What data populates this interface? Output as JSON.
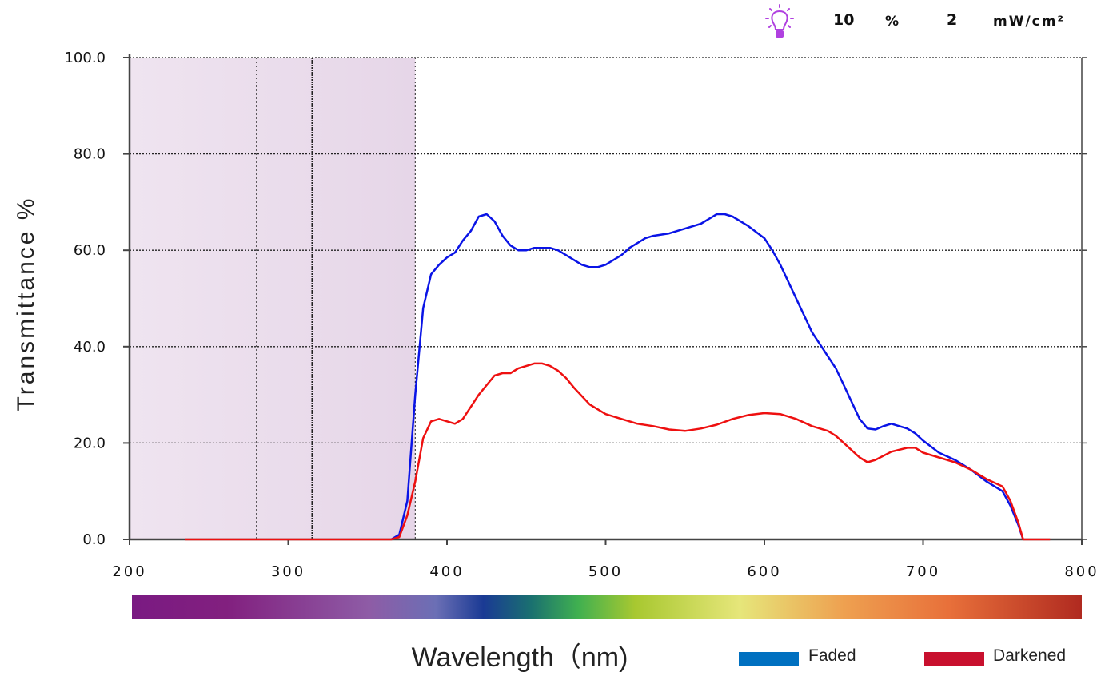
{
  "header": {
    "icon": "lightbulb-icon",
    "icon_color": "#b040e0",
    "intensity_value": "10",
    "intensity_unit": "%",
    "power_value": "2",
    "power_unit": "mW/cm²"
  },
  "chart_data": {
    "type": "line",
    "title": "",
    "xlabel": "Wavelength（nm)",
    "ylabel": "Transmittance %",
    "xlim": [
      200,
      800
    ],
    "ylim": [
      0,
      100
    ],
    "xticks": [
      200,
      300,
      400,
      500,
      600,
      700,
      800
    ],
    "yticks": [
      "0.0",
      "20.0",
      "40.0",
      "60.0",
      "80.0",
      "100.0"
    ],
    "grid": true,
    "uv_shaded_range": [
      200,
      380
    ],
    "reference_lines": [
      280,
      315,
      380
    ],
    "legend_position": "bottom-right",
    "series": [
      {
        "name": "Faded",
        "color": "#0a14e6",
        "legend_color": "#0070c0",
        "points": [
          [
            365,
            0
          ],
          [
            370,
            1
          ],
          [
            375,
            8
          ],
          [
            380,
            30
          ],
          [
            385,
            48
          ],
          [
            390,
            55
          ],
          [
            395,
            57
          ],
          [
            400,
            58.5
          ],
          [
            405,
            59.5
          ],
          [
            410,
            62
          ],
          [
            415,
            64
          ],
          [
            420,
            67
          ],
          [
            425,
            67.5
          ],
          [
            430,
            66
          ],
          [
            435,
            63
          ],
          [
            440,
            61
          ],
          [
            445,
            60
          ],
          [
            450,
            60
          ],
          [
            455,
            60.5
          ],
          [
            460,
            60.5
          ],
          [
            465,
            60.5
          ],
          [
            470,
            60
          ],
          [
            475,
            59
          ],
          [
            480,
            58
          ],
          [
            485,
            57
          ],
          [
            490,
            56.5
          ],
          [
            495,
            56.5
          ],
          [
            500,
            57
          ],
          [
            505,
            58
          ],
          [
            510,
            59
          ],
          [
            515,
            60.5
          ],
          [
            520,
            61.5
          ],
          [
            525,
            62.5
          ],
          [
            530,
            63
          ],
          [
            540,
            63.5
          ],
          [
            550,
            64.5
          ],
          [
            560,
            65.5
          ],
          [
            570,
            67.5
          ],
          [
            575,
            67.5
          ],
          [
            580,
            67
          ],
          [
            590,
            65
          ],
          [
            600,
            62.5
          ],
          [
            605,
            60
          ],
          [
            610,
            57
          ],
          [
            620,
            50
          ],
          [
            630,
            43
          ],
          [
            640,
            38
          ],
          [
            645,
            35.5
          ],
          [
            650,
            32
          ],
          [
            660,
            25
          ],
          [
            665,
            23
          ],
          [
            670,
            22.8
          ],
          [
            675,
            23.5
          ],
          [
            680,
            24
          ],
          [
            685,
            23.5
          ],
          [
            690,
            23
          ],
          [
            695,
            22
          ],
          [
            700,
            20.5
          ],
          [
            710,
            18
          ],
          [
            720,
            16.5
          ],
          [
            730,
            14.5
          ],
          [
            740,
            12
          ],
          [
            750,
            10
          ],
          [
            755,
            7
          ],
          [
            760,
            3
          ],
          [
            763,
            0
          ]
        ]
      },
      {
        "name": "Darkened",
        "color": "#ee1010",
        "legend_color": "#c8102e",
        "points": [
          [
            235,
            0
          ],
          [
            365,
            0
          ],
          [
            370,
            0.5
          ],
          [
            375,
            5
          ],
          [
            380,
            12
          ],
          [
            385,
            21
          ],
          [
            390,
            24.5
          ],
          [
            395,
            25
          ],
          [
            400,
            24.5
          ],
          [
            405,
            24
          ],
          [
            410,
            25
          ],
          [
            415,
            27.5
          ],
          [
            420,
            30
          ],
          [
            425,
            32
          ],
          [
            430,
            34
          ],
          [
            435,
            34.5
          ],
          [
            440,
            34.5
          ],
          [
            445,
            35.5
          ],
          [
            450,
            36
          ],
          [
            455,
            36.5
          ],
          [
            460,
            36.5
          ],
          [
            465,
            36
          ],
          [
            470,
            35
          ],
          [
            475,
            33.5
          ],
          [
            480,
            31.5
          ],
          [
            490,
            28
          ],
          [
            500,
            26
          ],
          [
            510,
            25
          ],
          [
            520,
            24
          ],
          [
            530,
            23.5
          ],
          [
            540,
            22.8
          ],
          [
            550,
            22.5
          ],
          [
            560,
            23
          ],
          [
            570,
            23.8
          ],
          [
            580,
            25
          ],
          [
            590,
            25.8
          ],
          [
            600,
            26.2
          ],
          [
            610,
            26
          ],
          [
            620,
            25
          ],
          [
            630,
            23.5
          ],
          [
            640,
            22.5
          ],
          [
            645,
            21.5
          ],
          [
            650,
            20
          ],
          [
            660,
            17
          ],
          [
            665,
            16
          ],
          [
            670,
            16.5
          ],
          [
            680,
            18.2
          ],
          [
            690,
            19
          ],
          [
            695,
            19
          ],
          [
            700,
            18
          ],
          [
            710,
            17
          ],
          [
            720,
            16
          ],
          [
            730,
            14.5
          ],
          [
            740,
            12.5
          ],
          [
            750,
            11
          ],
          [
            755,
            8
          ],
          [
            760,
            3.5
          ],
          [
            763,
            0
          ],
          [
            780,
            0
          ]
        ]
      }
    ]
  }
}
